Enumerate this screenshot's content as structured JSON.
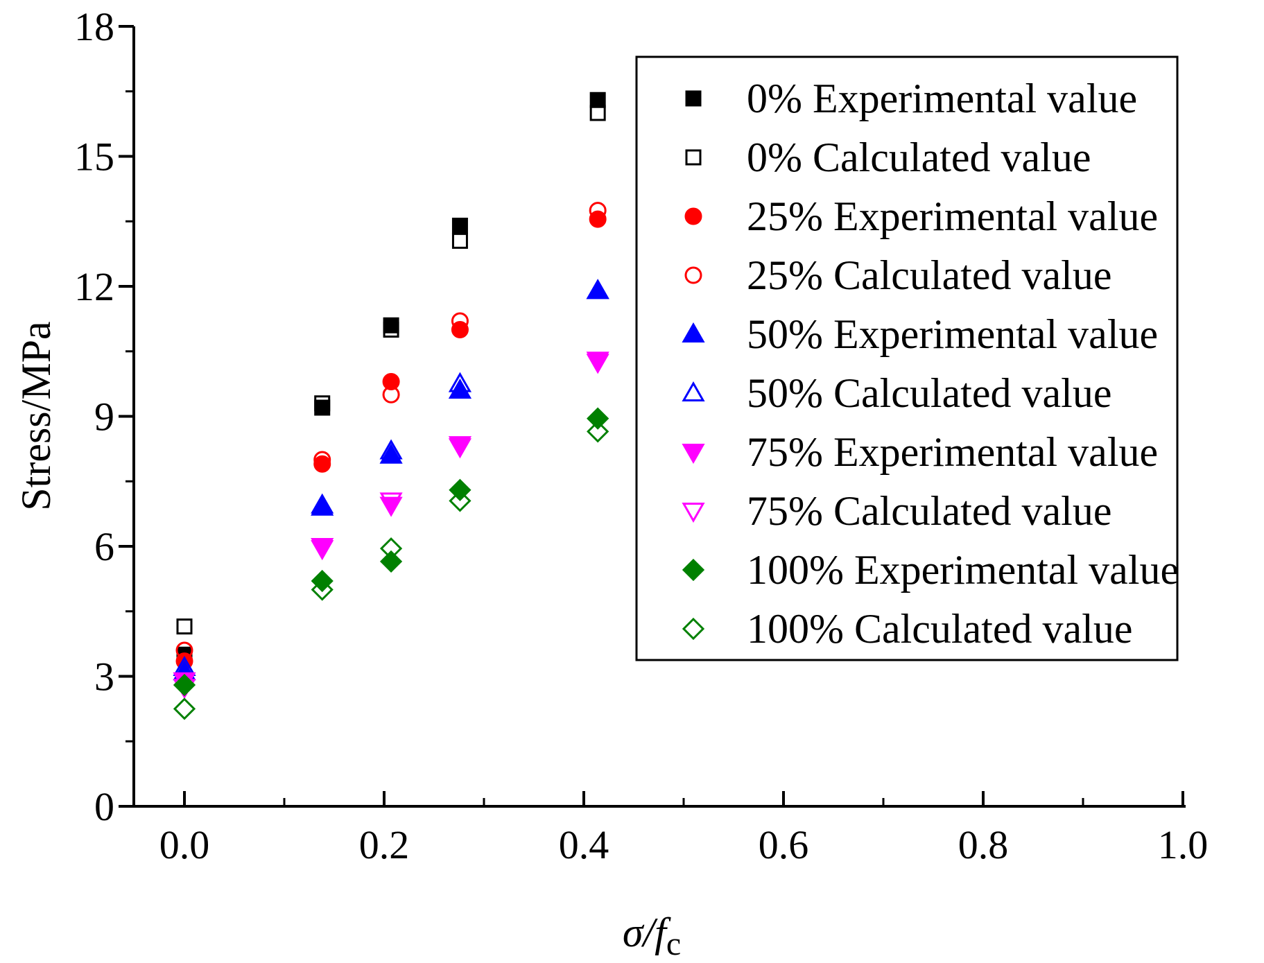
{
  "chart_data": {
    "type": "scatter",
    "title": "",
    "xlabel_main": "σ/f",
    "xlabel_sub": "c",
    "ylabel": "Stress/MPa",
    "xlim": [
      0.0,
      1.0
    ],
    "ylim": [
      0,
      18
    ],
    "xticks": [
      "0.0",
      "0.2",
      "0.4",
      "0.6",
      "0.8",
      "1.0"
    ],
    "yticks": [
      "0",
      "3",
      "6",
      "9",
      "12",
      "15",
      "18"
    ],
    "grid": false,
    "legend_position": "top-right",
    "x": [
      0.0,
      0.138,
      0.207,
      0.276,
      0.414
    ],
    "series": [
      {
        "name": "0% Experimental value",
        "color": "#000000",
        "marker": "square",
        "filled": true,
        "values": [
          3.5,
          9.2,
          11.1,
          13.4,
          16.3
        ]
      },
      {
        "name": "0% Calculated value",
        "color": "#000000",
        "marker": "square",
        "filled": false,
        "values": [
          4.15,
          9.3,
          11.0,
          13.05,
          16.0
        ]
      },
      {
        "name": "25% Experimental value",
        "color": "#ff0000",
        "marker": "circle",
        "filled": true,
        "values": [
          3.35,
          7.9,
          9.8,
          11.0,
          13.55
        ]
      },
      {
        "name": "25% Calculated value",
        "color": "#ff0000",
        "marker": "circle",
        "filled": false,
        "values": [
          3.6,
          8.0,
          9.5,
          11.2,
          13.75
        ]
      },
      {
        "name": "50% Experimental value",
        "color": "#0000ff",
        "marker": "triangle-up",
        "filled": true,
        "values": [
          3.1,
          6.9,
          8.1,
          9.6,
          11.9
        ]
      },
      {
        "name": "50% Calculated value",
        "color": "#0000ff",
        "marker": "triangle-up",
        "filled": false,
        "values": [
          3.2,
          6.95,
          8.2,
          9.75,
          11.9
        ]
      },
      {
        "name": "75% Experimental value",
        "color": "#ff00ff",
        "marker": "triangle-down",
        "filled": true,
        "values": [
          2.9,
          6.0,
          6.95,
          8.35,
          10.3
        ]
      },
      {
        "name": "75% Calculated value",
        "color": "#ff00ff",
        "marker": "triangle-down",
        "filled": false,
        "values": [
          2.75,
          5.95,
          7.05,
          8.3,
          10.25
        ]
      },
      {
        "name": "100% Experimental value",
        "color": "#008000",
        "marker": "diamond",
        "filled": true,
        "values": [
          2.8,
          5.2,
          5.65,
          7.3,
          8.95
        ]
      },
      {
        "name": "100% Calculated value",
        "color": "#008000",
        "marker": "diamond",
        "filled": false,
        "values": [
          2.25,
          5.0,
          5.95,
          7.05,
          8.65
        ]
      }
    ]
  }
}
